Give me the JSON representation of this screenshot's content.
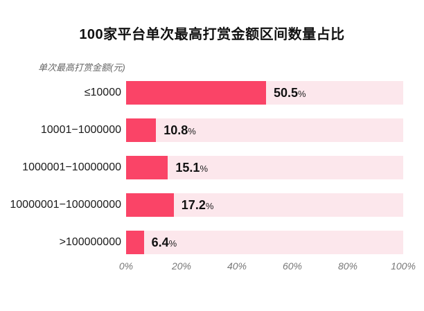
{
  "chart_data": {
    "type": "bar",
    "orientation": "horizontal",
    "title": "100家平台单次最高打赏金额区间数量占比",
    "y_axis_title": "单次最高打赏金额(元)",
    "categories": [
      "≤10000",
      "10001−1000000",
      "1000001−10000000",
      "10000001−100000000",
      ">100000000"
    ],
    "values": [
      50.5,
      10.8,
      15.1,
      17.2,
      6.4
    ],
    "unit": "%",
    "value_labels": [
      "50.5%",
      "10.8%",
      "15.1%",
      "17.2%",
      "6.4%"
    ],
    "x_ticks": [
      "0%",
      "20%",
      "40%",
      "60%",
      "80%",
      "100%"
    ],
    "x_tick_positions": [
      0,
      20,
      40,
      60,
      80,
      100
    ],
    "xlim": [
      0,
      100
    ],
    "grid": false,
    "legend": false,
    "colors": {
      "bar": "#FA4467",
      "track": "#FCE7EC",
      "title_text": "#111111",
      "axis_text": "#777777"
    }
  }
}
